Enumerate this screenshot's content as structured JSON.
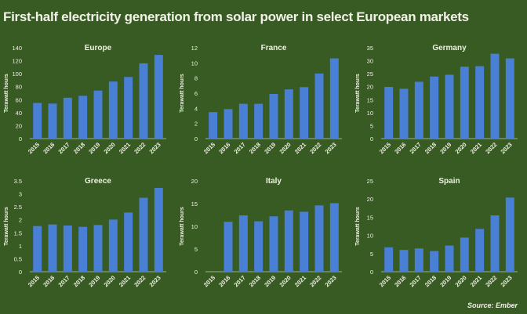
{
  "title": "First-half electricity generation from solar power in select European markets",
  "source": "Source: Ember",
  "colors": {
    "background": "#385a23",
    "bar": "#4a7fd6",
    "text": "#eef2e2"
  },
  "chart_data": [
    {
      "type": "bar",
      "title": "Europe",
      "ylabel": "Terawatt hours",
      "ylim": [
        0,
        140
      ],
      "yticks": [
        0,
        20,
        40,
        60,
        80,
        100,
        120,
        140
      ],
      "categories": [
        "2015",
        "2016",
        "2017",
        "2018",
        "2019",
        "2020",
        "2021",
        "2022",
        "2023"
      ],
      "values": [
        55,
        54,
        63,
        66,
        74,
        88,
        95,
        116,
        129
      ]
    },
    {
      "type": "bar",
      "title": "France",
      "ylabel": "Terawatt hours",
      "ylim": [
        0,
        12
      ],
      "yticks": [
        0,
        2,
        4,
        6,
        8,
        10,
        12
      ],
      "categories": [
        "2015",
        "2016",
        "2017",
        "2018",
        "2019",
        "2020",
        "2021",
        "2022",
        "2023"
      ],
      "values": [
        3.5,
        3.9,
        4.6,
        4.6,
        5.9,
        6.5,
        6.8,
        8.6,
        10.6
      ]
    },
    {
      "type": "bar",
      "title": "Germany",
      "ylabel": "Terawatt hours",
      "ylim": [
        0,
        35
      ],
      "yticks": [
        0,
        5,
        10,
        15,
        20,
        25,
        30,
        35
      ],
      "categories": [
        "2015",
        "2016",
        "2017",
        "2018",
        "2019",
        "2020",
        "2021",
        "2022",
        "2023"
      ],
      "values": [
        19.9,
        19.2,
        21.9,
        23.9,
        24.6,
        27.7,
        27.9,
        32.7,
        30.9
      ]
    },
    {
      "type": "bar",
      "title": "Greece",
      "ylabel": "Terawatt hours",
      "ylim": [
        0,
        3.5
      ],
      "yticks": [
        0,
        0.5,
        1,
        1.5,
        2,
        2.5,
        3,
        3.5
      ],
      "categories": [
        "2015",
        "2016",
        "2017",
        "2018",
        "2019",
        "2020",
        "2021",
        "2022",
        "2023"
      ],
      "values": [
        1.76,
        1.82,
        1.78,
        1.73,
        1.8,
        2.01,
        2.28,
        2.85,
        3.23
      ]
    },
    {
      "type": "bar",
      "title": "Italy",
      "ylabel": "Terawatt hours",
      "ylim": [
        0,
        20
      ],
      "yticks": [
        0,
        5,
        10,
        15,
        20
      ],
      "categories": [
        "2015",
        "2016",
        "2017",
        "2018",
        "2019",
        "2020",
        "2021",
        "2022",
        "2023"
      ],
      "values": [
        0,
        11,
        12.4,
        11.1,
        12.2,
        13.5,
        13.2,
        14.6,
        15.1
      ]
    },
    {
      "type": "bar",
      "title": "Spain",
      "ylabel": "Terawatt hours",
      "ylim": [
        0,
        25
      ],
      "yticks": [
        0,
        5,
        10,
        15,
        20,
        25
      ],
      "categories": [
        "2015",
        "2016",
        "2017",
        "2018",
        "2019",
        "2020",
        "2021",
        "2022",
        "2023"
      ],
      "values": [
        6.7,
        6.0,
        6.4,
        5.7,
        7.2,
        9.4,
        11.8,
        15.5,
        20.4
      ]
    }
  ]
}
